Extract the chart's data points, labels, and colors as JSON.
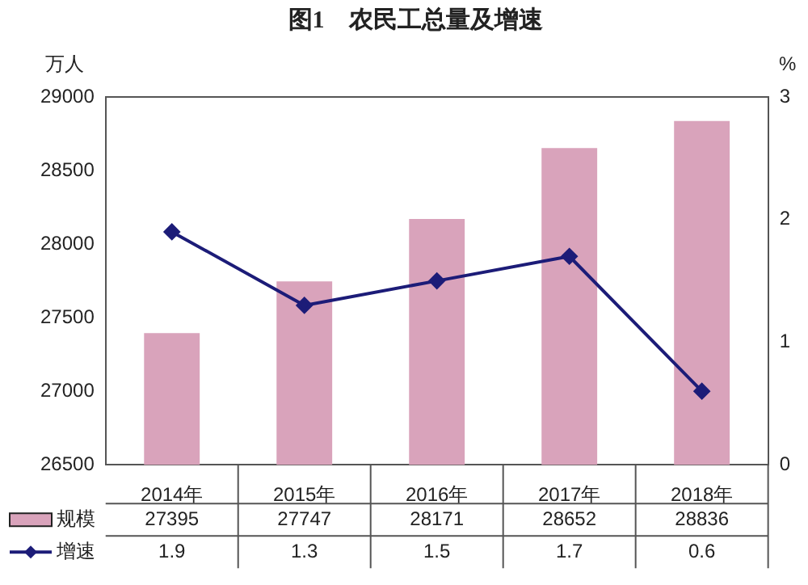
{
  "chart_data": {
    "type": "bar",
    "title": "图1　农民工总量及增速",
    "ylabel": "万人",
    "y2label": "%",
    "categories": [
      "2014年",
      "2015年",
      "2016年",
      "2017年",
      "2018年"
    ],
    "series": [
      {
        "name": "规模",
        "color": "#d9a3bb",
        "values": [
          27395,
          27747,
          28171,
          28652,
          28836
        ]
      },
      {
        "name": "增速",
        "type": "line",
        "axis": "y2",
        "color": "#1c1c78",
        "values": [
          1.9,
          1.3,
          1.5,
          1.7,
          0.6
        ]
      }
    ],
    "ylim": [
      26500,
      29000
    ],
    "yticks": [
      26500,
      27000,
      27500,
      28000,
      28500,
      29000
    ],
    "y2lim": [
      0,
      3
    ],
    "y2ticks": [
      0,
      1,
      2,
      3
    ],
    "marker": "diamond",
    "legend": "bottom",
    "data_labels": true,
    "grid": false
  }
}
